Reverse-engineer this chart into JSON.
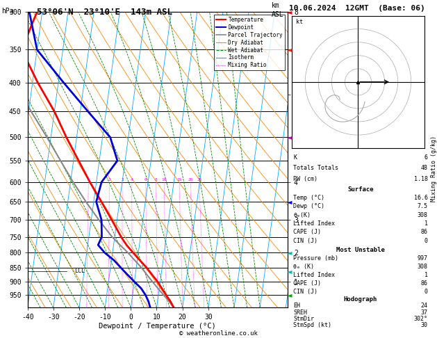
{
  "title_left": "53°06'N  23°10'E  143m ASL",
  "title_right": "10.06.2024  12GMT  (Base: 06)",
  "xlabel": "Dewpoint / Temperature (°C)",
  "bg_color": "#ffffff",
  "pmin": 300,
  "pmax": 1000,
  "tmin": -40,
  "tmax": 40,
  "skew": 30,
  "pressure_lines": [
    300,
    350,
    400,
    450,
    500,
    550,
    600,
    650,
    700,
    750,
    800,
    850,
    900,
    950
  ],
  "temp_pressure": [
    1000,
    975,
    950,
    925,
    900,
    875,
    850,
    825,
    800,
    775,
    750,
    700,
    650,
    600,
    550,
    500,
    450,
    400,
    350,
    300
  ],
  "temp_T": [
    16.6,
    15.0,
    13.0,
    11.0,
    9.0,
    6.5,
    4.0,
    1.0,
    -2.0,
    -5.0,
    -7.5,
    -12.0,
    -17.0,
    -22.5,
    -28.0,
    -34.0,
    -40.0,
    -48.0,
    -56.0,
    -52.0
  ],
  "dewp_pressure": [
    1000,
    975,
    950,
    925,
    900,
    875,
    850,
    825,
    800,
    775,
    750,
    700,
    650,
    600,
    550,
    500,
    450,
    400,
    350,
    300
  ],
  "dewp_T": [
    7.5,
    6.5,
    5.0,
    3.0,
    0.0,
    -3.0,
    -6.0,
    -9.0,
    -13.0,
    -16.0,
    -15.0,
    -16.0,
    -19.0,
    -18.0,
    -13.0,
    -17.0,
    -27.0,
    -38.0,
    -50.0,
    -55.0
  ],
  "parcel_pressure": [
    1000,
    975,
    950,
    925,
    900,
    875,
    850,
    825,
    800,
    775,
    750,
    700,
    650,
    600,
    550,
    500,
    450,
    400,
    350,
    300
  ],
  "parcel_T": [
    16.6,
    14.5,
    12.0,
    9.5,
    7.0,
    4.5,
    2.0,
    -1.0,
    -4.0,
    -7.5,
    -11.0,
    -17.0,
    -23.0,
    -29.0,
    -35.0,
    -41.5,
    -49.0,
    -57.0,
    -62.0,
    -57.0
  ],
  "temp_color": "#ff0000",
  "dewp_color": "#0000dd",
  "parcel_color": "#888888",
  "dry_adiabat_color": "#ff8800",
  "wet_adiabat_color": "#008800",
  "isotherm_color": "#00aaff",
  "mixing_ratio_color": "#ff00ff",
  "lcl_pressure": 862,
  "mixing_ratios": [
    1,
    2,
    3,
    4,
    6,
    8,
    10,
    15,
    20,
    25
  ],
  "km_labels": [
    "1",
    "2",
    "3",
    "4",
    "5",
    "6",
    "7",
    "8"
  ],
  "km_pressures": [
    900,
    800,
    700,
    600,
    500,
    420,
    350,
    300
  ],
  "xtick_temps": [
    -40,
    -30,
    -20,
    -10,
    0,
    10,
    20,
    30
  ],
  "info_K": "6",
  "info_TT": "48",
  "info_PW": "1.18",
  "surf_temp": "16.6",
  "surf_dewp": "7.5",
  "surf_theta_e": "308",
  "surf_LI": "1",
  "surf_CAPE": "86",
  "surf_CIN": "0",
  "mu_pressure": "997",
  "mu_theta_e": "308",
  "mu_LI": "1",
  "mu_CAPE": "86",
  "mu_CIN": "0",
  "hodo_EH": "24",
  "hodo_SREH": "37",
  "hodo_StmDir": "302°",
  "hodo_StmSpd": "30",
  "copyright": "© weatheronline.co.uk",
  "wind_barb_data": [
    {
      "pressure": 300,
      "color": "#ff0000",
      "symbol": "wind_heavy"
    },
    {
      "pressure": 350,
      "color": "#ff2200",
      "symbol": "wind_heavy"
    },
    {
      "pressure": 500,
      "color": "#cc00cc",
      "symbol": "wind_light"
    },
    {
      "pressure": 650,
      "color": "#0000ff",
      "symbol": "wind_light"
    },
    {
      "pressure": 800,
      "color": "#00bbbb",
      "symbol": "wind_light"
    },
    {
      "pressure": 862,
      "color": "#00bbbb",
      "symbol": "wind_light"
    },
    {
      "pressure": 950,
      "color": "#00aa00",
      "symbol": "wind_light"
    }
  ]
}
